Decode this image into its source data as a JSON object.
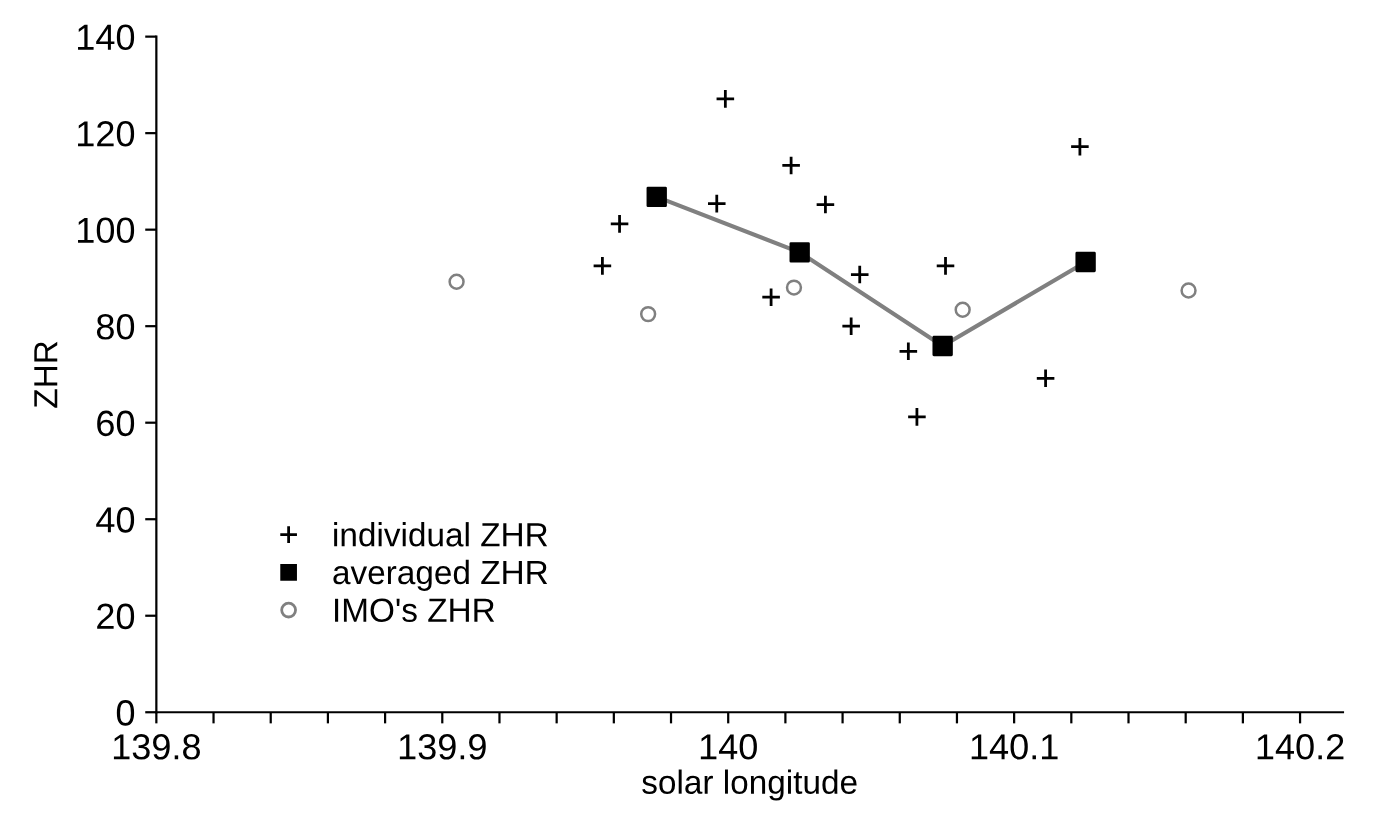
{
  "chart_data": {
    "type": "scatter",
    "xlabel": "solar longitude",
    "ylabel": "ZHR",
    "xlim": [
      139.8,
      140.215
    ],
    "ylim": [
      0,
      140
    ],
    "xticks": [
      139.8,
      {
        "value": 139.82,
        "label": null
      },
      {
        "value": 139.84,
        "label": null
      },
      {
        "value": 139.86,
        "label": null
      },
      {
        "value": 139.88,
        "label": null
      },
      139.9,
      {
        "value": 139.92,
        "label": null
      },
      {
        "value": 139.94,
        "label": null
      },
      {
        "value": 139.96,
        "label": null
      },
      {
        "value": 139.98,
        "label": null
      },
      140,
      {
        "value": 140.02,
        "label": null
      },
      {
        "value": 140.04,
        "label": null
      },
      {
        "value": 140.06,
        "label": null
      },
      {
        "value": 140.08,
        "label": null
      },
      140.1,
      {
        "value": 140.12,
        "label": null
      },
      {
        "value": 140.14,
        "label": null
      },
      {
        "value": 140.16,
        "label": null
      },
      {
        "value": 140.18,
        "label": null
      },
      140.2
    ],
    "yticks": [
      0,
      20,
      40,
      60,
      80,
      100,
      120,
      140
    ],
    "grid": false,
    "legend": "bottom left",
    "series": [
      {
        "name": "individual ZHR",
        "marker": "cross",
        "color": "#000000",
        "x": [
          139.956,
          139.962,
          139.999,
          139.996,
          140.022,
          140.034,
          140.015,
          140.046,
          140.043,
          140.063,
          140.066,
          140.076,
          140.111,
          140.123
        ],
        "values": [
          92.5,
          101.2,
          127.1,
          105.4,
          113.3,
          105.2,
          86.0,
          90.7,
          80.0,
          74.8,
          61.2,
          92.5,
          69.2,
          117.2
        ]
      },
      {
        "name": "averaged ZHR",
        "type": "line",
        "marker": "square",
        "line_style": "solid",
        "color": "#000000",
        "x": [
          139.975,
          140.025,
          140.075,
          140.125
        ],
        "values": [
          106.8,
          95.3,
          75.9,
          93.3
        ]
      },
      {
        "name": "IMO's ZHR",
        "marker": "circle",
        "color": "#808080",
        "x": [
          139.905,
          139.972,
          140.023,
          140.082,
          140.161
        ],
        "values": [
          89.2,
          82.5,
          88.0,
          83.4,
          87.4
        ]
      }
    ]
  }
}
